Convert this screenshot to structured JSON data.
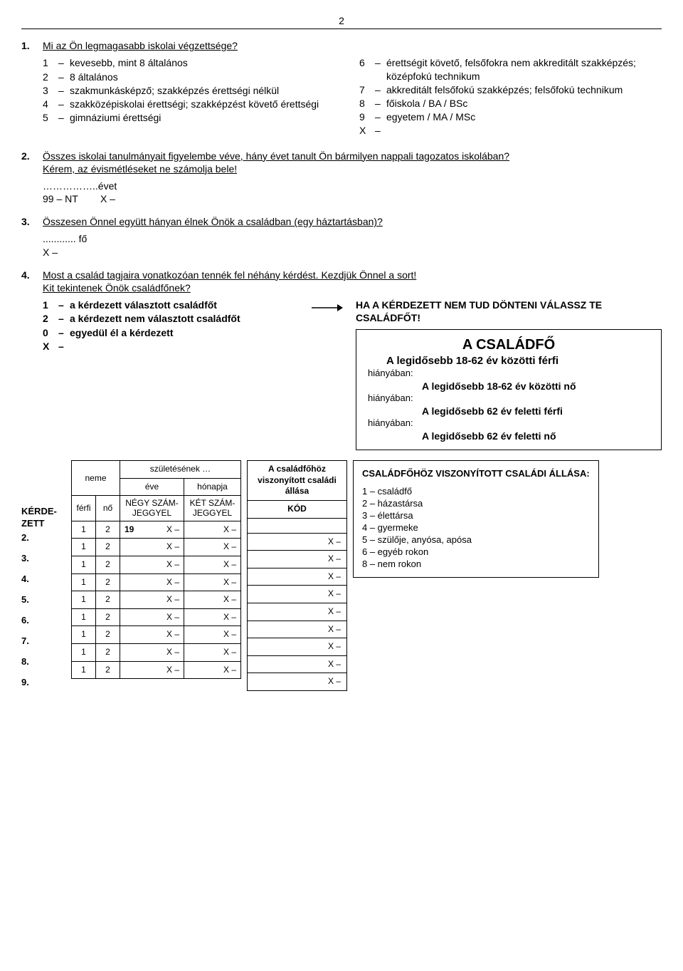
{
  "page_number": "2",
  "q1": {
    "num": "1.",
    "text": "Mi az Ön legmagasabb iskolai végzettsége?",
    "left": [
      {
        "code": "1",
        "text": "kevesebb, mint 8 általános"
      },
      {
        "code": "2",
        "text": "8 általános"
      },
      {
        "code": "3",
        "text": "szakmunkásképző; szakképzés érettségi nélkül"
      },
      {
        "code": "4",
        "text": "szakközépiskolai érettségi; szakképzést követő érettségi"
      },
      {
        "code": "5",
        "text": "gimnáziumi érettségi"
      }
    ],
    "right": [
      {
        "code": "6",
        "text": "érettségit követő, felsőfokra nem akkreditált szakképzés; középfokú technikum"
      },
      {
        "code": "7",
        "text": "akkreditált felsőfokú szakképzés; felsőfokú technikum"
      },
      {
        "code": "8",
        "text": "főiskola / BA / BSc"
      },
      {
        "code": "9",
        "text": "egyetem / MA / MSc"
      },
      {
        "code": "X",
        "text": ""
      }
    ]
  },
  "q2": {
    "num": "2.",
    "text1": "Összes iskolai tanulmányait figyelembe véve, hány évet tanult Ön bármilyen nappali tagozatos iskolában?",
    "text2": "Kérem, az évismétléseket ne számolja bele!",
    "ans_suffix": "..évet",
    "nt": "99 – NT",
    "x": "X –"
  },
  "q3": {
    "num": "3.",
    "text": "Összesen Önnel együtt hányan élnek Önök a családban (egy háztartásban)?",
    "ans": "............ fő",
    "x": "X –"
  },
  "q4": {
    "num": "4.",
    "text1": "Most a család tagjaira vonatkozóan tennék fel néhány kérdést. Kezdjük Önnel a sort!",
    "text2": "Kit tekintenek Önök családfőnek?",
    "opts": [
      {
        "code": "1",
        "text": "a kérdezett választott családfőt"
      },
      {
        "code": "2",
        "text": "a kérdezett nem választott családfőt"
      },
      {
        "code": "0",
        "text": "egyedül él a kérdezett"
      },
      {
        "code": "X",
        "text": ""
      }
    ],
    "instr": "HA A KÉRDEZETT NEM TUD DÖNTENI VÁLASSZ TE CSALÁDFŐT!",
    "box": {
      "title": "A CSALÁDFŐ",
      "rule1": "A legidősebb 18-62 év közötti férfi",
      "hi": "hiányában:",
      "rule2": "A legidősebb 18-62 év közötti nő",
      "rule3": "A legidősebb 62 év feletti férfi",
      "rule4": "A legidősebb 62 év feletti nő"
    }
  },
  "table": {
    "rows": [
      "KÉRDE-ZETT",
      "2.",
      "3.",
      "4.",
      "5.",
      "6.",
      "7.",
      "8.",
      "9."
    ],
    "neme": "neme",
    "ferfi": "férfi",
    "no": "nő",
    "szul": "születésének …",
    "eve": "éve",
    "honap": "hónapja",
    "negy": "NÉGY SZÁM-JEGGYEL",
    "ket": "KÉT SZÁM-JEGGYEL",
    "v1": "1",
    "v2": "2",
    "y19": "19",
    "x": "X –",
    "kcol_t1": "A családfőhöz viszonyított családi állása",
    "kcol_t2": "KÓD"
  },
  "rightbox": {
    "title": "CSALÁDFŐHÖZ VISZONYÍTOTT CSALÁDI ÁLLÁSA:",
    "items": [
      {
        "code": "1",
        "text": "családfő"
      },
      {
        "code": "2",
        "text": "házastársa"
      },
      {
        "code": "3",
        "text": "élettársa"
      },
      {
        "code": "4",
        "text": "gyermeke"
      },
      {
        "code": "5",
        "text": "szülője, anyósa, apósa"
      },
      {
        "code": "6",
        "text": "egyéb rokon"
      },
      {
        "code": "8",
        "text": "nem rokon"
      }
    ]
  }
}
